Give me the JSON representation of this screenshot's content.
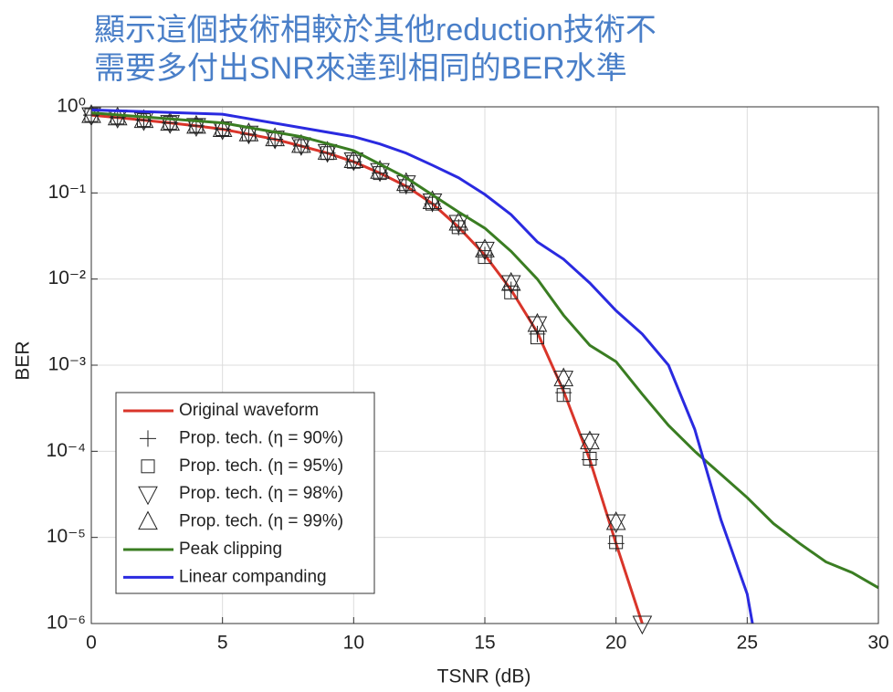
{
  "chart_data": {
    "type": "line",
    "title": [
      "顯示這個技術相較於其他reduction技術不",
      "需要多付出SNR來達到相同的BER水準"
    ],
    "x_label": "TSNR (dB)",
    "y_label": "BER",
    "xlim": [
      0,
      30
    ],
    "xticks": [
      0,
      5,
      10,
      15,
      20,
      25,
      30
    ],
    "ylim": [
      1e-06,
      1
    ],
    "log_y": true,
    "yticks": [
      {
        "value": 1,
        "label": "10⁰"
      },
      {
        "value": 0.1,
        "label": "10⁻¹"
      },
      {
        "value": 0.01,
        "label": "10⁻²"
      },
      {
        "value": 0.001,
        "label": "10⁻³"
      },
      {
        "value": 0.0001,
        "label": "10⁻⁴"
      },
      {
        "value": 1e-05,
        "label": "10⁻⁵"
      },
      {
        "value": 1e-06,
        "label": "10⁻⁶"
      }
    ],
    "grid": true,
    "legend": "lower left",
    "series": [
      {
        "name": "Original waveform",
        "color": "#d9352a",
        "line": true,
        "marker": "none",
        "x": [
          0,
          1,
          2,
          3,
          4,
          5,
          6,
          7,
          8,
          9,
          10,
          11,
          12,
          13,
          14,
          15,
          16,
          17,
          18,
          19,
          20,
          21
        ],
        "values": [
          0.8,
          0.75,
          0.7,
          0.65,
          0.6,
          0.55,
          0.48,
          0.42,
          0.35,
          0.29,
          0.23,
          0.17,
          0.12,
          0.075,
          0.04,
          0.019,
          0.0075,
          0.0024,
          0.0005,
          8e-05,
          8.5e-06,
          1e-06
        ]
      },
      {
        "name": "Prop. tech. (η = 90%)",
        "color": "#222222",
        "line": false,
        "marker": "+",
        "x": [
          0,
          1,
          2,
          3,
          4,
          5,
          6,
          7,
          8,
          9,
          10,
          11,
          12,
          13,
          14,
          15,
          16,
          17,
          18,
          19,
          20
        ],
        "values": [
          0.8,
          0.75,
          0.7,
          0.65,
          0.6,
          0.55,
          0.48,
          0.42,
          0.35,
          0.29,
          0.23,
          0.17,
          0.12,
          0.075,
          0.04,
          0.019,
          0.0075,
          0.0023,
          0.00048,
          8e-05,
          8.5e-06
        ]
      },
      {
        "name": "Prop. tech. (η = 95%)",
        "color": "#222222",
        "line": false,
        "marker": "square",
        "x": [
          0,
          1,
          2,
          3,
          4,
          5,
          6,
          7,
          8,
          9,
          10,
          11,
          12,
          13,
          14,
          15,
          16,
          17,
          18,
          19,
          20
        ],
        "values": [
          0.8,
          0.75,
          0.7,
          0.65,
          0.6,
          0.55,
          0.48,
          0.42,
          0.35,
          0.29,
          0.23,
          0.17,
          0.12,
          0.075,
          0.04,
          0.018,
          0.007,
          0.0021,
          0.00045,
          8.2e-05,
          8.8e-06
        ]
      },
      {
        "name": "Prop. tech. (η = 98%)",
        "color": "#222222",
        "line": false,
        "marker": "triangle-down",
        "x": [
          0,
          1,
          2,
          3,
          4,
          5,
          6,
          7,
          8,
          9,
          10,
          11,
          12,
          13,
          14,
          15,
          16,
          17,
          18,
          19,
          20,
          21
        ],
        "values": [
          0.8,
          0.75,
          0.7,
          0.65,
          0.6,
          0.55,
          0.49,
          0.43,
          0.36,
          0.3,
          0.24,
          0.18,
          0.13,
          0.08,
          0.045,
          0.022,
          0.009,
          0.003,
          0.0007,
          0.00013,
          1.5e-05,
          1e-06
        ]
      },
      {
        "name": "Prop. tech. (η = 99%)",
        "color": "#222222",
        "line": false,
        "marker": "triangle-up",
        "x": [
          0,
          1,
          2,
          3,
          4,
          5,
          6,
          7,
          8,
          9,
          10,
          11,
          12,
          13,
          14,
          15,
          16,
          17,
          18,
          19,
          20
        ],
        "values": [
          0.8,
          0.75,
          0.7,
          0.65,
          0.6,
          0.55,
          0.49,
          0.43,
          0.36,
          0.3,
          0.24,
          0.18,
          0.13,
          0.08,
          0.045,
          0.022,
          0.009,
          0.003,
          0.0007,
          0.00013,
          1.5e-05
        ]
      },
      {
        "name": "Peak clipping",
        "color": "#3a7d22",
        "line": true,
        "marker": "none",
        "x": [
          0,
          5,
          8,
          10,
          12,
          14,
          15,
          16,
          17,
          18,
          19,
          20,
          21,
          22,
          23,
          24,
          25,
          26,
          27,
          28,
          29,
          30
        ],
        "values": [
          0.85,
          0.65,
          0.45,
          0.31,
          0.15,
          0.06,
          0.039,
          0.021,
          0.01,
          0.0038,
          0.0017,
          0.0011,
          0.00046,
          0.0002,
          0.0001,
          5.4e-05,
          2.9e-05,
          1.45e-05,
          8.5e-06,
          5.2e-06,
          3.9e-06,
          2.6e-06
        ]
      },
      {
        "name": "Linear companding",
        "color": "#2a2ae0",
        "line": true,
        "marker": "none",
        "x": [
          0,
          5,
          10,
          11,
          12,
          13,
          14,
          15,
          16,
          17,
          18,
          19,
          20,
          21,
          22,
          23,
          24,
          25,
          25.2
        ],
        "values": [
          0.92,
          0.82,
          0.45,
          0.37,
          0.29,
          0.21,
          0.15,
          0.096,
          0.056,
          0.027,
          0.017,
          0.009,
          0.0043,
          0.0023,
          0.001,
          0.00018,
          1.6e-05,
          2.2e-06,
          1e-06
        ]
      }
    ]
  }
}
